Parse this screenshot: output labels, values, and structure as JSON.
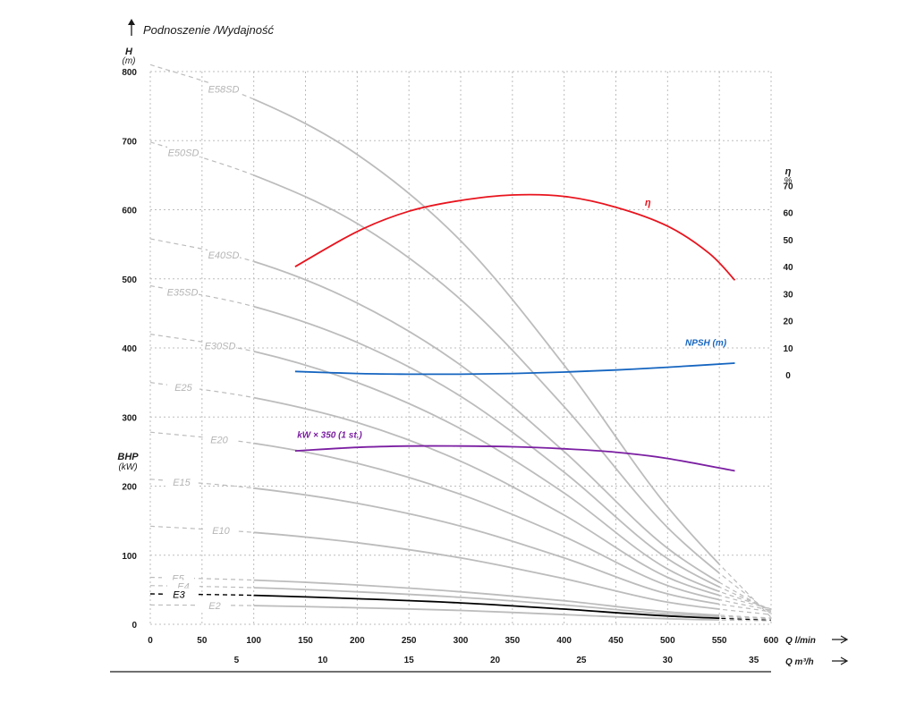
{
  "header": {
    "title": "Podnoszenie /Wydajność"
  },
  "chart_data": {
    "type": "line",
    "title": "Podnoszenie /Wydajność",
    "y_left": {
      "label": "H",
      "unit": "(m)",
      "lim": [
        0,
        800
      ],
      "ticks": [
        "0",
        "100",
        "200",
        "300",
        "400",
        "500",
        "600",
        "700",
        "800"
      ]
    },
    "bhp_label": {
      "label": "BHP",
      "unit": "(kW)"
    },
    "y_right": {
      "label": "η",
      "unit": "%",
      "ticks": [
        "0",
        "10",
        "20",
        "30",
        "40",
        "50",
        "60",
        "70"
      ]
    },
    "x_lmin": {
      "label": "Q l/min",
      "unit": "l/min",
      "lim": [
        0,
        600
      ],
      "ticks": [
        "0",
        "50",
        "100",
        "150",
        "200",
        "250",
        "300",
        "350",
        "400",
        "450",
        "500",
        "550",
        "600"
      ]
    },
    "x_m3h": {
      "label": "Q m³/h",
      "unit": "m³/h",
      "ticks": [
        "5",
        "10",
        "15",
        "20",
        "25",
        "30",
        "35"
      ]
    },
    "grid": true,
    "head_curves": [
      {
        "name": "E58SD",
        "points": [
          [
            0,
            810
          ],
          [
            100,
            760
          ],
          [
            200,
            680
          ],
          [
            300,
            555
          ],
          [
            400,
            375
          ],
          [
            500,
            170
          ],
          [
            600,
            10
          ]
        ]
      },
      {
        "name": "E50SD",
        "points": [
          [
            0,
            698
          ],
          [
            100,
            650
          ],
          [
            200,
            580
          ],
          [
            300,
            470
          ],
          [
            400,
            315
          ],
          [
            500,
            140
          ],
          [
            600,
            15
          ]
        ]
      },
      {
        "name": "E40SD",
        "points": [
          [
            0,
            558
          ],
          [
            100,
            525
          ],
          [
            200,
            465
          ],
          [
            300,
            375
          ],
          [
            400,
            250
          ],
          [
            500,
            110
          ],
          [
            600,
            18
          ]
        ]
      },
      {
        "name": "E35SD",
        "points": [
          [
            0,
            490
          ],
          [
            100,
            460
          ],
          [
            200,
            408
          ],
          [
            300,
            330
          ],
          [
            400,
            220
          ],
          [
            500,
            95
          ],
          [
            600,
            20
          ]
        ]
      },
      {
        "name": "E30SD",
        "points": [
          [
            0,
            420
          ],
          [
            100,
            395
          ],
          [
            200,
            350
          ],
          [
            300,
            283
          ],
          [
            400,
            190
          ],
          [
            500,
            80
          ],
          [
            600,
            22
          ]
        ]
      },
      {
        "name": "E25",
        "points": [
          [
            0,
            350
          ],
          [
            100,
            328
          ],
          [
            200,
            292
          ],
          [
            300,
            236
          ],
          [
            400,
            158
          ],
          [
            500,
            68
          ],
          [
            600,
            22
          ]
        ]
      },
      {
        "name": "E20",
        "points": [
          [
            0,
            278
          ],
          [
            100,
            262
          ],
          [
            200,
            233
          ],
          [
            300,
            188
          ],
          [
            400,
            127
          ],
          [
            500,
            56
          ],
          [
            600,
            20
          ]
        ]
      },
      {
        "name": "E15",
        "points": [
          [
            0,
            210
          ],
          [
            100,
            197
          ],
          [
            200,
            175
          ],
          [
            300,
            142
          ],
          [
            400,
            96
          ],
          [
            500,
            44
          ],
          [
            600,
            18
          ]
        ]
      },
      {
        "name": "E10",
        "points": [
          [
            0,
            142
          ],
          [
            100,
            133
          ],
          [
            200,
            118
          ],
          [
            300,
            96
          ],
          [
            400,
            66
          ],
          [
            500,
            32
          ],
          [
            600,
            14
          ]
        ]
      },
      {
        "name": "E5",
        "points": [
          [
            0,
            68
          ],
          [
            100,
            64
          ],
          [
            200,
            57
          ],
          [
            300,
            47
          ],
          [
            400,
            34
          ],
          [
            500,
            18
          ],
          [
            600,
            9
          ]
        ]
      },
      {
        "name": "E4",
        "points": [
          [
            0,
            56
          ],
          [
            100,
            53
          ],
          [
            200,
            47
          ],
          [
            300,
            39
          ],
          [
            400,
            28
          ],
          [
            500,
            15
          ],
          [
            600,
            8
          ]
        ]
      },
      {
        "name": "E3",
        "points": [
          [
            0,
            44
          ],
          [
            100,
            42
          ],
          [
            200,
            37
          ],
          [
            300,
            31
          ],
          [
            400,
            22
          ],
          [
            500,
            12
          ],
          [
            600,
            6
          ]
        ]
      },
      {
        "name": "E2",
        "points": [
          [
            0,
            28
          ],
          [
            100,
            27
          ],
          [
            200,
            24
          ],
          [
            300,
            20
          ],
          [
            400,
            14
          ],
          [
            500,
            8
          ],
          [
            600,
            5
          ]
        ]
      }
    ],
    "efficiency": {
      "name": "η",
      "color": "#e8141e",
      "points": [
        [
          140,
          40
        ],
        [
          200,
          53
        ],
        [
          250,
          60.5
        ],
        [
          300,
          64.5
        ],
        [
          350,
          66.5
        ],
        [
          400,
          66
        ],
        [
          450,
          62
        ],
        [
          500,
          55
        ],
        [
          540,
          45
        ],
        [
          565,
          35
        ]
      ]
    },
    "npsh": {
      "name": "NPSH (m)",
      "color": "#1565c0",
      "points": [
        [
          140,
          366
        ],
        [
          200,
          363
        ],
        [
          250,
          362
        ],
        [
          300,
          362
        ],
        [
          350,
          363
        ],
        [
          400,
          365
        ],
        [
          450,
          368
        ],
        [
          500,
          372
        ],
        [
          565,
          378
        ]
      ]
    },
    "power": {
      "name": "kW × 350 (1 st.)",
      "color": "#7b1fa2",
      "points": [
        [
          140,
          251
        ],
        [
          200,
          256
        ],
        [
          250,
          258
        ],
        [
          300,
          258
        ],
        [
          350,
          257
        ],
        [
          400,
          254
        ],
        [
          450,
          249
        ],
        [
          500,
          240
        ],
        [
          565,
          222
        ]
      ]
    }
  }
}
